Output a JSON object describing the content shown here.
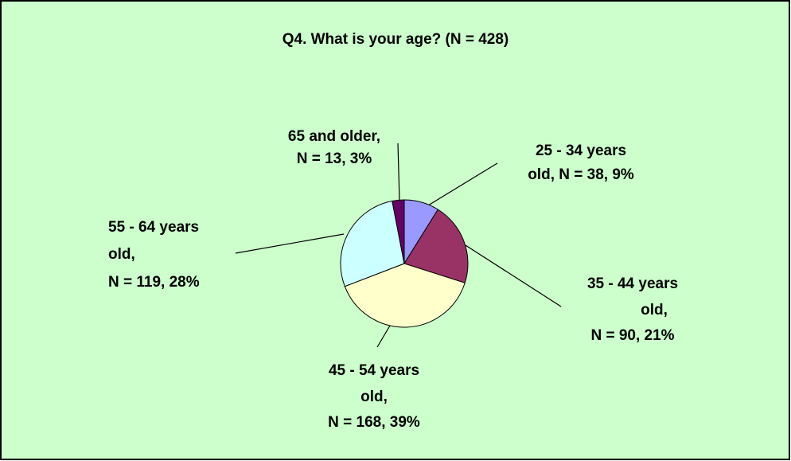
{
  "chart_data": {
    "type": "pie",
    "title": "Q4. What is your age? (N = 428)",
    "values": [
      38,
      90,
      168,
      119,
      13
    ],
    "value_labels": [
      [
        "25 - 34 years",
        "old, N = 38, 9%"
      ],
      [
        "35 - 44 years",
        "old,",
        "N = 90, 21%"
      ],
      [
        "45 - 54 years",
        "old,",
        "N = 168, 39%"
      ],
      [
        "55 - 64 years",
        "old,",
        "N = 119, 28%"
      ],
      [
        "65 and older,",
        "N = 13, 3%"
      ]
    ],
    "colors": [
      "#9999ff",
      "#993366",
      "#ffffcc",
      "#ccffff",
      "#660066"
    ],
    "start_angle": 0,
    "direction": "clockwise"
  }
}
